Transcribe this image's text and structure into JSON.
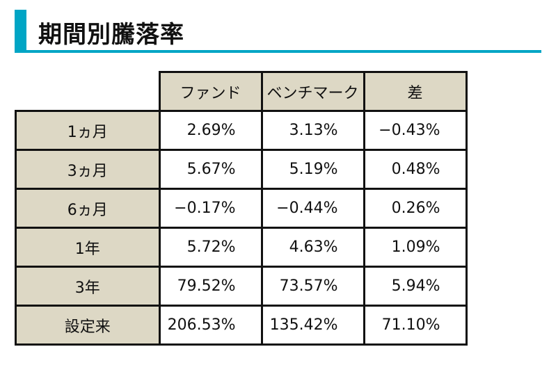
{
  "title": "期間別騰落率",
  "columns": [
    "ファンド",
    "ベンチマーク",
    "差"
  ],
  "rows": [
    {
      "label": "1ヵ月",
      "values": [
        "2.69%",
        "3.13%",
        "−0.43%"
      ]
    },
    {
      "label": "3ヵ月",
      "values": [
        "5.67%",
        "5.19%",
        "0.48%"
      ]
    },
    {
      "label": "6ヵ月",
      "values": [
        "−0.17%",
        "−0.44%",
        "0.26%"
      ]
    },
    {
      "label": "1年",
      "values": [
        "5.72%",
        "4.63%",
        "1.09%"
      ]
    },
    {
      "label": "3年",
      "values": [
        "79.52%",
        "73.57%",
        "5.94%"
      ]
    },
    {
      "label": "設定来",
      "values": [
        "206.53%",
        "135.42%",
        "71.10%"
      ]
    }
  ],
  "colors": {
    "accent": "#00a5c5",
    "header_bg": "#ddd8c5"
  }
}
